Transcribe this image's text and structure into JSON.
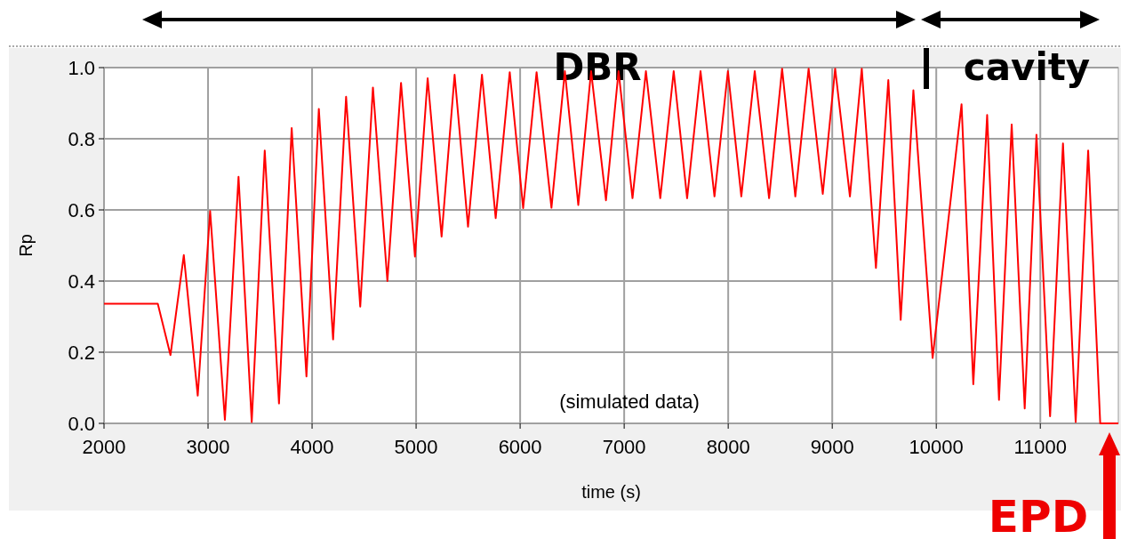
{
  "chart_data": {
    "type": "line",
    "xlabel": "time (s)",
    "ylabel": "Rp",
    "annotations": [
      "DBR",
      "cavity",
      "(simulated data)",
      "EPD"
    ],
    "xlim": [
      2000,
      11750
    ],
    "xticks": [
      2000,
      3000,
      4000,
      5000,
      6000,
      7000,
      8000,
      9000,
      10000,
      11000
    ],
    "ylim": [
      0,
      1.0
    ],
    "yticks": [
      {
        "value": 0,
        "label": "0.0"
      },
      {
        "value": 0.2,
        "label": "0.2"
      },
      {
        "value": 0.4,
        "label": "0.4"
      },
      {
        "value": 0.6,
        "label": "0.6"
      },
      {
        "value": 0.8,
        "label": "0.8"
      },
      {
        "value": 1.0,
        "label": "1.0"
      }
    ],
    "grid": true,
    "series": [
      {
        "color": "#ff0000",
        "x": [
          2000,
          2517,
          2639,
          2767,
          2901,
          3020,
          3162,
          3293,
          3420,
          3545,
          3682,
          3804,
          3946,
          4065,
          4202,
          4327,
          4463,
          4585,
          4724,
          4855,
          4989,
          5111,
          5245,
          5370,
          5499,
          5633,
          5765,
          5900,
          6029,
          6158,
          6301,
          6430,
          6559,
          6682,
          6825,
          6946,
          7080,
          7209,
          7347,
          7476,
          7605,
          7734,
          7868,
          7997,
          8126,
          8255,
          8393,
          8518,
          8645,
          8773,
          8909,
          9028,
          9170,
          9284,
          9420,
          9539,
          9658,
          9780,
          9965,
          10243,
          10356,
          10489,
          10603,
          10725,
          10850,
          10963,
          11094,
          11218,
          11340,
          11460,
          11576,
          11750
        ],
        "values": [
          0.336,
          0.336,
          0.192,
          0.473,
          0.078,
          0.597,
          0.01,
          0.693,
          0.004,
          0.767,
          0.056,
          0.83,
          0.132,
          0.884,
          0.236,
          0.918,
          0.328,
          0.944,
          0.4,
          0.957,
          0.469,
          0.97,
          0.525,
          0.98,
          0.553,
          0.98,
          0.577,
          0.987,
          0.605,
          0.987,
          0.606,
          0.99,
          0.614,
          0.99,
          0.627,
          0.99,
          0.633,
          0.99,
          0.633,
          0.99,
          0.633,
          0.99,
          0.638,
          0.99,
          0.638,
          0.99,
          0.633,
          0.997,
          0.638,
          0.997,
          0.645,
          0.997,
          0.638,
          0.997,
          0.437,
          0.965,
          0.291,
          0.936,
          0.184,
          0.897,
          0.11,
          0.867,
          0.066,
          0.84,
          0.042,
          0.811,
          0.02,
          0.787,
          0.004,
          0.767,
          0,
          0
        ]
      }
    ]
  }
}
